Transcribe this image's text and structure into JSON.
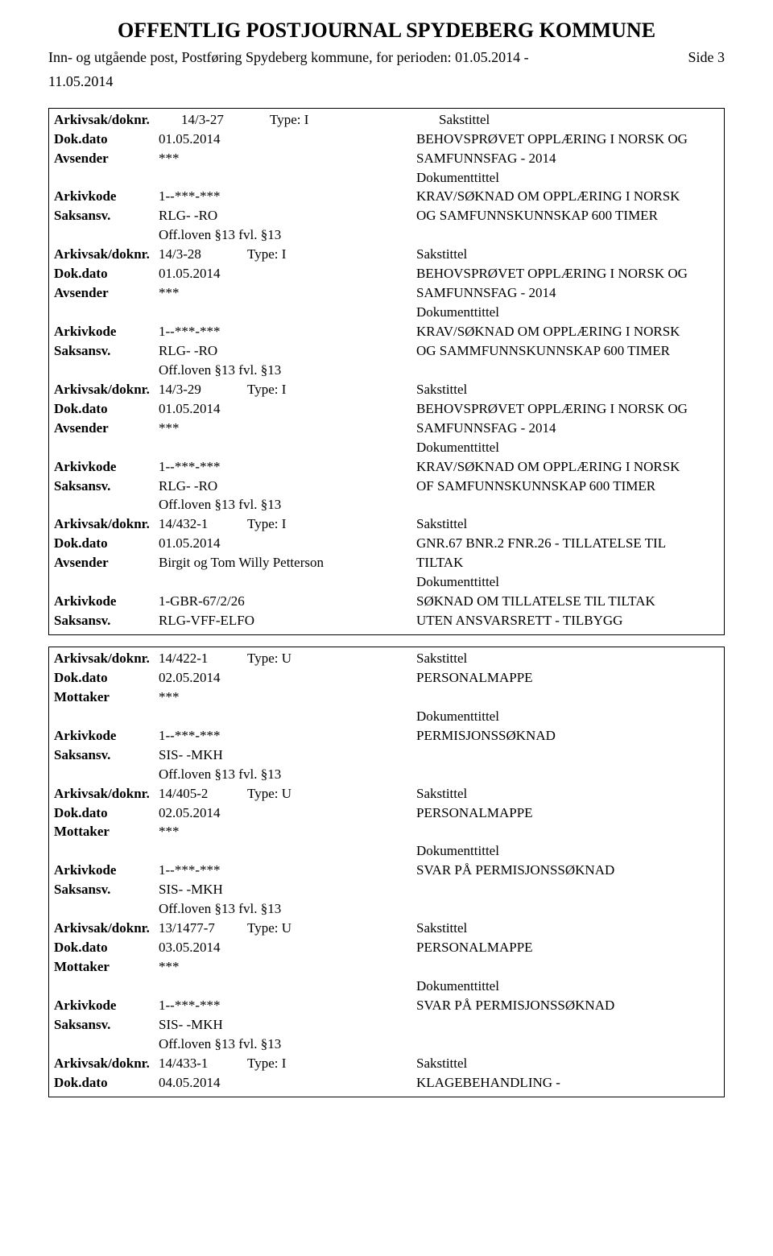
{
  "header": {
    "title": "OFFENTLIG POSTJOURNAL SPYDEBERG KOMMUNE",
    "side": "Side 3",
    "subtitle_line1": "Inn- og utgående post, Postføring Spydeberg kommune, for perioden: 01.05.2014 -",
    "subtitle_line2": "11.05.2014"
  },
  "labels": {
    "arkivsak": "Arkivsak/doknr.",
    "dokdato": "Dok.dato",
    "avsender": "Avsender",
    "mottaker": "Mottaker",
    "arkivkode": "Arkivkode",
    "saksansv": "Saksansv.",
    "sakstittel": "Sakstittel",
    "type": "Type:",
    "dokumenttittel": "Dokumenttittel"
  },
  "box1": [
    {
      "doknr": "14/3-27",
      "typeVal": "I",
      "dato": "01.05.2014",
      "rightTop": "BEHOVSPRØVET OPPLÆRING I NORSK OG",
      "avsender": "***",
      "rightAvs": "SAMFUNNSFAG - 2014",
      "kode": "1--***-***",
      "rightKode": "KRAV/SØKNAD OM OPPLÆRING I NORSK",
      "ansv": "RLG- -RO",
      "rightAnsv": "OG SAMFUNNSKUNNSKAP 600 TIMER",
      "off": "Off.loven §13  fvl. §13"
    },
    {
      "doknr": "14/3-28",
      "typeVal": "I",
      "dato": "01.05.2014",
      "rightTop": "BEHOVSPRØVET OPPLÆRING I NORSK OG",
      "avsender": "***",
      "rightAvs": "SAMFUNNSFAG - 2014",
      "kode": "1--***-***",
      "rightKode": "KRAV/SØKNAD OM OPPLÆRING I NORSK",
      "ansv": "RLG- -RO",
      "rightAnsv": "OG SAMMFUNNSKUNNSKAP 600 TIMER",
      "off": "Off.loven §13  fvl. §13"
    },
    {
      "doknr": "14/3-29",
      "typeVal": "I",
      "dato": "01.05.2014",
      "rightTop": "BEHOVSPRØVET OPPLÆRING I NORSK OG",
      "avsender": "***",
      "rightAvs": "SAMFUNNSFAG - 2014",
      "kode": "1--***-***",
      "rightKode": "KRAV/SØKNAD OM OPPLÆRING I NORSK",
      "ansv": "RLG- -RO",
      "rightAnsv": "OF SAMFUNNSKUNNSKAP 600 TIMER",
      "off": "Off.loven §13  fvl. §13"
    },
    {
      "doknr": "14/432-1",
      "typeVal": "I",
      "dato": "01.05.2014",
      "rightTop": "GNR.67 BNR.2 FNR.26 - TILLATELSE TIL",
      "avsender": "Birgit og Tom Willy Petterson",
      "rightAvs": "TILTAK",
      "kode": "1-GBR-67/2/26",
      "rightKode": "SØKNAD OM TILLATELSE TIL TILTAK",
      "ansv": "RLG-VFF-ELFO",
      "rightAnsv": "UTEN ANSVARSRETT - TILBYGG",
      "off": ""
    }
  ],
  "box2": [
    {
      "doknr": "14/422-1",
      "typeVal": "U",
      "dato": "02.05.2014",
      "rightTop": "PERSONALMAPPE",
      "mottaker": "***",
      "kode": "1--***-***",
      "rightKode": "PERMISJONSSØKNAD",
      "ansv": "SIS- -MKH",
      "off": "Off.loven §13  fvl. §13"
    },
    {
      "doknr": "14/405-2",
      "typeVal": "U",
      "dato": "02.05.2014",
      "rightTop": "PERSONALMAPPE",
      "mottaker": "***",
      "kode": "1--***-***",
      "rightKode": "SVAR PÅ PERMISJONSSØKNAD",
      "ansv": "SIS- -MKH",
      "off": "Off.loven §13  fvl. §13"
    },
    {
      "doknr": "13/1477-7",
      "typeVal": "U",
      "dato": "03.05.2014",
      "rightTop": "PERSONALMAPPE",
      "mottaker": "***",
      "kode": "1--***-***",
      "rightKode": "SVAR PÅ PERMISJONSSØKNAD",
      "ansv": "SIS- -MKH",
      "off": "Off.loven §13  fvl. §13"
    },
    {
      "doknr": "14/433-1",
      "typeVal": "I",
      "dato": "04.05.2014",
      "rightTop": "KLAGEBEHANDLING -",
      "partial": true
    }
  ]
}
